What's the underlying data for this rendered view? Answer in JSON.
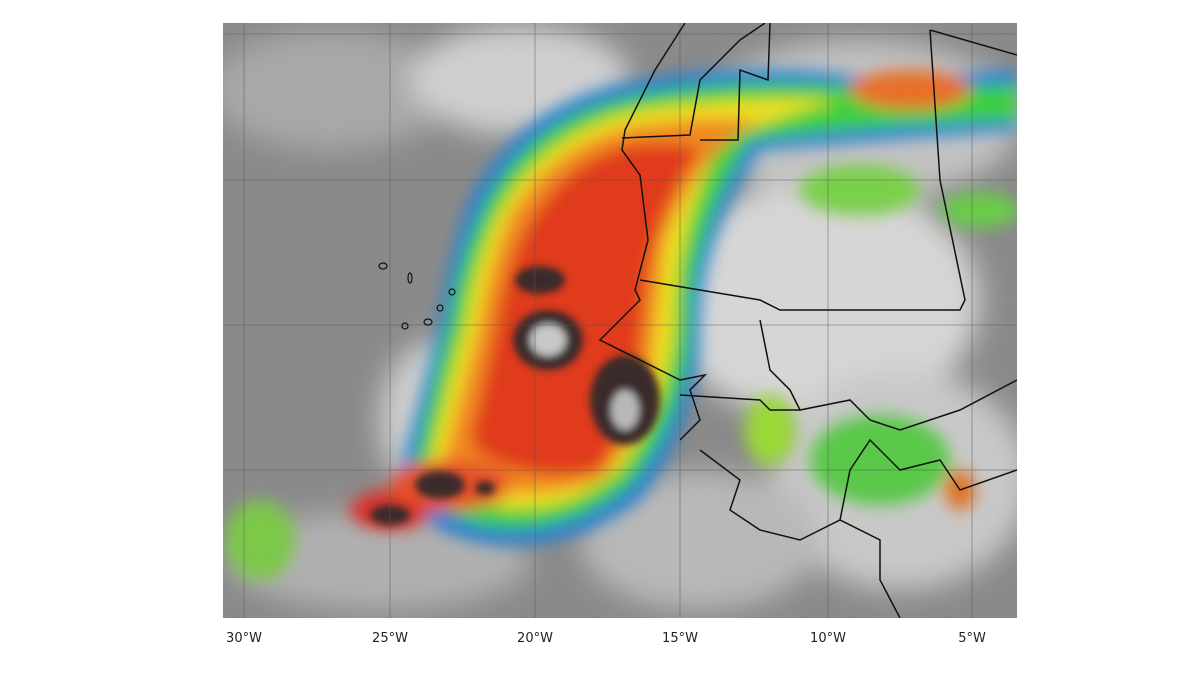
{
  "map": {
    "longitude_labels": [
      "30°W",
      "25°W",
      "20°W",
      "15°W",
      "10°W",
      "5°W"
    ]
  }
}
